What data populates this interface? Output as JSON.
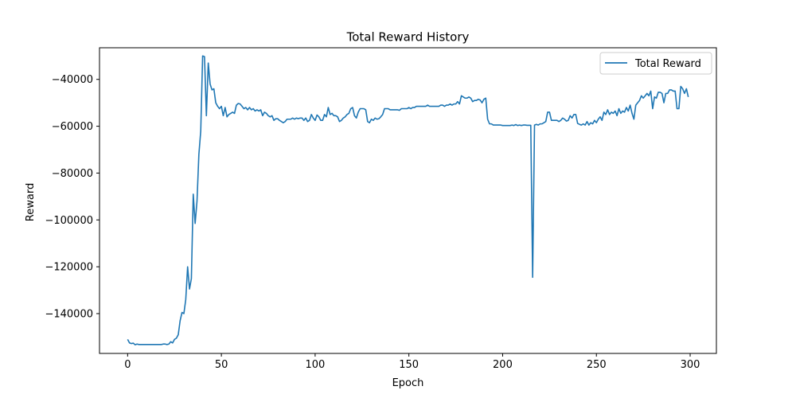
{
  "chart_data": {
    "type": "line",
    "title": "Total Reward History",
    "xlabel": "Epoch",
    "ylabel": "Reward",
    "xlim": [
      -15,
      314
    ],
    "ylim": [
      -157000,
      -26500
    ],
    "xticks": [
      0,
      50,
      100,
      150,
      200,
      250,
      300
    ],
    "yticks": [
      -140000,
      -120000,
      -100000,
      -80000,
      -60000,
      -40000
    ],
    "ytick_labels": [
      "−140000",
      "−120000",
      "−100000",
      "−80000",
      "−60000",
      "−40000"
    ],
    "grid": false,
    "legend_position": "top-right",
    "series": [
      {
        "name": "Total Reward",
        "color": "#1f77b4",
        "points": [
          [
            0,
            -151000
          ],
          [
            1,
            -152500
          ],
          [
            2,
            -152800
          ],
          [
            3,
            -152600
          ],
          [
            4,
            -153300
          ],
          [
            5,
            -153000
          ],
          [
            6,
            -153200
          ],
          [
            7,
            -153200
          ],
          [
            8,
            -153200
          ],
          [
            9,
            -153200
          ],
          [
            10,
            -153200
          ],
          [
            11,
            -153200
          ],
          [
            12,
            -153200
          ],
          [
            13,
            -153200
          ],
          [
            14,
            -153200
          ],
          [
            15,
            -153200
          ],
          [
            16,
            -153200
          ],
          [
            17,
            -153200
          ],
          [
            18,
            -153200
          ],
          [
            19,
            -153000
          ],
          [
            20,
            -153000
          ],
          [
            21,
            -153200
          ],
          [
            22,
            -153000
          ],
          [
            23,
            -152000
          ],
          [
            24,
            -152500
          ],
          [
            25,
            -151000
          ],
          [
            26,
            -150500
          ],
          [
            27,
            -149000
          ],
          [
            28,
            -143000
          ],
          [
            29,
            -139500
          ],
          [
            30,
            -140000
          ],
          [
            31,
            -134000
          ],
          [
            32,
            -120000
          ],
          [
            33,
            -129500
          ],
          [
            34,
            -125000
          ],
          [
            35,
            -89000
          ],
          [
            36,
            -101500
          ],
          [
            37,
            -92000
          ],
          [
            38,
            -72000
          ],
          [
            39,
            -62000
          ],
          [
            40,
            -30000
          ],
          [
            41,
            -30300
          ],
          [
            42,
            -55500
          ],
          [
            43,
            -33000
          ],
          [
            44,
            -42000
          ],
          [
            45,
            -44500
          ],
          [
            46,
            -44000
          ],
          [
            47,
            -50000
          ],
          [
            48,
            -51500
          ],
          [
            49,
            -52500
          ],
          [
            50,
            -51500
          ],
          [
            51,
            -55500
          ],
          [
            52,
            -52000
          ],
          [
            53,
            -56000
          ],
          [
            54,
            -55000
          ],
          [
            55,
            -54500
          ],
          [
            56,
            -54000
          ],
          [
            57,
            -54500
          ],
          [
            58,
            -51000
          ],
          [
            59,
            -50300
          ],
          [
            60,
            -50500
          ],
          [
            61,
            -51500
          ],
          [
            62,
            -52500
          ],
          [
            63,
            -52000
          ],
          [
            64,
            -53000
          ],
          [
            65,
            -52000
          ],
          [
            66,
            -53000
          ],
          [
            67,
            -52500
          ],
          [
            68,
            -53500
          ],
          [
            69,
            -53000
          ],
          [
            70,
            -53500
          ],
          [
            71,
            -53000
          ],
          [
            72,
            -55500
          ],
          [
            73,
            -54000
          ],
          [
            74,
            -54500
          ],
          [
            75,
            -55500
          ],
          [
            76,
            -56000
          ],
          [
            77,
            -55500
          ],
          [
            78,
            -57500
          ],
          [
            79,
            -56800
          ],
          [
            80,
            -56800
          ],
          [
            81,
            -57500
          ],
          [
            82,
            -58000
          ],
          [
            83,
            -58500
          ],
          [
            84,
            -58000
          ],
          [
            85,
            -57000
          ],
          [
            86,
            -57000
          ],
          [
            87,
            -57000
          ],
          [
            88,
            -56500
          ],
          [
            89,
            -57000
          ],
          [
            90,
            -56500
          ],
          [
            91,
            -56800
          ],
          [
            92,
            -56500
          ],
          [
            93,
            -56500
          ],
          [
            94,
            -57500
          ],
          [
            95,
            -56500
          ],
          [
            96,
            -58000
          ],
          [
            97,
            -57500
          ],
          [
            98,
            -55000
          ],
          [
            99,
            -56500
          ],
          [
            100,
            -57500
          ],
          [
            101,
            -55200
          ],
          [
            102,
            -56000
          ],
          [
            103,
            -57500
          ],
          [
            104,
            -57500
          ],
          [
            105,
            -55000
          ],
          [
            106,
            -56000
          ],
          [
            107,
            -52000
          ],
          [
            108,
            -55000
          ],
          [
            109,
            -54500
          ],
          [
            110,
            -55500
          ],
          [
            111,
            -55500
          ],
          [
            112,
            -56000
          ],
          [
            113,
            -58000
          ],
          [
            114,
            -57500
          ],
          [
            115,
            -56500
          ],
          [
            116,
            -56000
          ],
          [
            117,
            -55000
          ],
          [
            118,
            -54500
          ],
          [
            119,
            -52500
          ],
          [
            120,
            -52000
          ],
          [
            121,
            -55500
          ],
          [
            122,
            -56500
          ],
          [
            123,
            -54000
          ],
          [
            124,
            -52500
          ],
          [
            125,
            -52500
          ],
          [
            126,
            -52500
          ],
          [
            127,
            -53000
          ],
          [
            128,
            -58000
          ],
          [
            129,
            -58500
          ],
          [
            130,
            -57000
          ],
          [
            131,
            -57500
          ],
          [
            132,
            -56500
          ],
          [
            133,
            -57000
          ],
          [
            134,
            -56800
          ],
          [
            135,
            -56000
          ],
          [
            136,
            -55000
          ],
          [
            137,
            -52500
          ],
          [
            138,
            -52500
          ],
          [
            139,
            -52500
          ],
          [
            140,
            -53000
          ],
          [
            141,
            -53000
          ],
          [
            142,
            -53000
          ],
          [
            143,
            -53000
          ],
          [
            144,
            -53000
          ],
          [
            145,
            -53200
          ],
          [
            146,
            -52500
          ],
          [
            147,
            -52500
          ],
          [
            148,
            -52500
          ],
          [
            149,
            -52500
          ],
          [
            150,
            -52000
          ],
          [
            151,
            -52500
          ],
          [
            152,
            -52000
          ],
          [
            153,
            -52000
          ],
          [
            154,
            -51500
          ],
          [
            155,
            -51500
          ],
          [
            156,
            -51500
          ],
          [
            157,
            -51500
          ],
          [
            158,
            -51500
          ],
          [
            159,
            -51500
          ],
          [
            160,
            -51000
          ],
          [
            161,
            -51500
          ],
          [
            162,
            -51500
          ],
          [
            163,
            -51500
          ],
          [
            164,
            -51500
          ],
          [
            165,
            -51500
          ],
          [
            166,
            -51500
          ],
          [
            167,
            -51000
          ],
          [
            168,
            -51000
          ],
          [
            169,
            -51500
          ],
          [
            170,
            -51000
          ],
          [
            171,
            -51000
          ],
          [
            172,
            -50500
          ],
          [
            173,
            -51000
          ],
          [
            174,
            -50500
          ],
          [
            175,
            -50500
          ],
          [
            176,
            -49500
          ],
          [
            177,
            -50500
          ],
          [
            178,
            -47000
          ],
          [
            179,
            -47500
          ],
          [
            180,
            -48000
          ],
          [
            181,
            -48000
          ],
          [
            182,
            -47500
          ],
          [
            183,
            -48000
          ],
          [
            184,
            -49500
          ],
          [
            185,
            -49000
          ],
          [
            186,
            -49000
          ],
          [
            187,
            -48500
          ],
          [
            188,
            -48800
          ],
          [
            189,
            -50000
          ],
          [
            190,
            -48500
          ],
          [
            191,
            -48000
          ],
          [
            192,
            -57000
          ],
          [
            193,
            -59000
          ],
          [
            194,
            -59000
          ],
          [
            195,
            -59500
          ],
          [
            196,
            -59500
          ],
          [
            197,
            -59500
          ],
          [
            198,
            -59500
          ],
          [
            199,
            -59500
          ],
          [
            200,
            -59700
          ],
          [
            201,
            -59700
          ],
          [
            202,
            -59700
          ],
          [
            203,
            -59700
          ],
          [
            204,
            -59700
          ],
          [
            205,
            -59500
          ],
          [
            206,
            -59700
          ],
          [
            207,
            -59300
          ],
          [
            208,
            -59700
          ],
          [
            209,
            -59500
          ],
          [
            210,
            -59700
          ],
          [
            211,
            -59500
          ],
          [
            212,
            -59500
          ],
          [
            213,
            -59600
          ],
          [
            214,
            -59600
          ],
          [
            215,
            -59600
          ],
          [
            216,
            -124500
          ],
          [
            217,
            -59500
          ],
          [
            218,
            -59200
          ],
          [
            219,
            -59500
          ],
          [
            220,
            -59000
          ],
          [
            221,
            -59000
          ],
          [
            222,
            -58500
          ],
          [
            223,
            -58000
          ],
          [
            224,
            -54000
          ],
          [
            225,
            -54000
          ],
          [
            226,
            -57500
          ],
          [
            227,
            -57500
          ],
          [
            228,
            -57500
          ],
          [
            229,
            -57500
          ],
          [
            230,
            -58000
          ],
          [
            231,
            -57500
          ],
          [
            232,
            -56500
          ],
          [
            233,
            -57000
          ],
          [
            234,
            -57800
          ],
          [
            235,
            -57500
          ],
          [
            236,
            -55500
          ],
          [
            237,
            -56500
          ],
          [
            238,
            -55000
          ],
          [
            239,
            -55000
          ],
          [
            240,
            -58800
          ],
          [
            241,
            -59200
          ],
          [
            242,
            -59500
          ],
          [
            243,
            -59000
          ],
          [
            244,
            -59500
          ],
          [
            245,
            -58000
          ],
          [
            246,
            -59500
          ],
          [
            247,
            -58500
          ],
          [
            248,
            -59000
          ],
          [
            249,
            -57500
          ],
          [
            250,
            -58500
          ],
          [
            251,
            -57000
          ],
          [
            252,
            -56000
          ],
          [
            253,
            -57500
          ],
          [
            254,
            -54000
          ],
          [
            255,
            -55000
          ],
          [
            256,
            -53000
          ],
          [
            257,
            -55000
          ],
          [
            258,
            -54000
          ],
          [
            259,
            -54500
          ],
          [
            260,
            -53500
          ],
          [
            261,
            -55500
          ],
          [
            262,
            -52500
          ],
          [
            263,
            -54500
          ],
          [
            264,
            -53500
          ],
          [
            265,
            -54000
          ],
          [
            266,
            -52000
          ],
          [
            267,
            -53500
          ],
          [
            268,
            -51000
          ],
          [
            269,
            -54500
          ],
          [
            270,
            -57000
          ],
          [
            271,
            -51000
          ],
          [
            272,
            -50000
          ],
          [
            273,
            -49000
          ],
          [
            274,
            -47000
          ],
          [
            275,
            -48000
          ],
          [
            276,
            -47000
          ],
          [
            277,
            -46000
          ],
          [
            278,
            -47000
          ],
          [
            279,
            -45000
          ],
          [
            280,
            -52500
          ],
          [
            281,
            -47500
          ],
          [
            282,
            -48000
          ],
          [
            283,
            -45500
          ],
          [
            284,
            -45500
          ],
          [
            285,
            -46000
          ],
          [
            286,
            -50000
          ],
          [
            287,
            -46000
          ],
          [
            288,
            -46000
          ],
          [
            289,
            -44500
          ],
          [
            290,
            -44500
          ],
          [
            291,
            -45000
          ],
          [
            292,
            -45000
          ],
          [
            293,
            -52500
          ],
          [
            294,
            -52500
          ],
          [
            295,
            -43000
          ],
          [
            296,
            -44000
          ],
          [
            297,
            -46000
          ],
          [
            298,
            -44000
          ],
          [
            299,
            -47500
          ]
        ]
      }
    ]
  }
}
